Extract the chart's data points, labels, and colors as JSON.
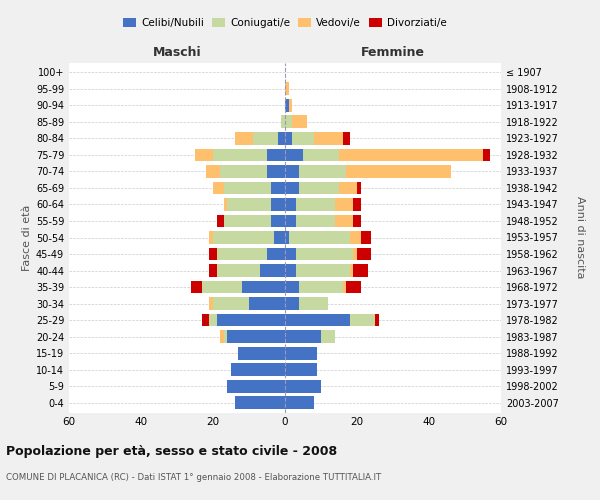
{
  "age_groups": [
    "0-4",
    "5-9",
    "10-14",
    "15-19",
    "20-24",
    "25-29",
    "30-34",
    "35-39",
    "40-44",
    "45-49",
    "50-54",
    "55-59",
    "60-64",
    "65-69",
    "70-74",
    "75-79",
    "80-84",
    "85-89",
    "90-94",
    "95-99",
    "100+"
  ],
  "birth_years": [
    "2003-2007",
    "1998-2002",
    "1993-1997",
    "1988-1992",
    "1983-1987",
    "1978-1982",
    "1973-1977",
    "1968-1972",
    "1963-1967",
    "1958-1962",
    "1953-1957",
    "1948-1952",
    "1943-1947",
    "1938-1942",
    "1933-1937",
    "1928-1932",
    "1923-1927",
    "1918-1922",
    "1913-1917",
    "1908-1912",
    "≤ 1907"
  ],
  "male": {
    "celibi": [
      14,
      16,
      15,
      13,
      16,
      19,
      10,
      12,
      7,
      5,
      3,
      4,
      4,
      4,
      5,
      5,
      2,
      0,
      0,
      0,
      0
    ],
    "coniugati": [
      0,
      0,
      0,
      0,
      1,
      2,
      10,
      11,
      12,
      14,
      17,
      13,
      12,
      13,
      13,
      15,
      7,
      1,
      0,
      0,
      0
    ],
    "vedovi": [
      0,
      0,
      0,
      0,
      1,
      0,
      1,
      0,
      0,
      0,
      1,
      0,
      1,
      3,
      4,
      5,
      5,
      0,
      0,
      0,
      0
    ],
    "divorziati": [
      0,
      0,
      0,
      0,
      0,
      2,
      0,
      3,
      2,
      2,
      0,
      2,
      0,
      0,
      0,
      0,
      0,
      0,
      0,
      0,
      0
    ]
  },
  "female": {
    "nubili": [
      8,
      10,
      9,
      9,
      10,
      18,
      4,
      4,
      3,
      3,
      1,
      3,
      3,
      4,
      4,
      5,
      2,
      0,
      1,
      0,
      0
    ],
    "coniugate": [
      0,
      0,
      0,
      0,
      4,
      7,
      8,
      12,
      15,
      16,
      17,
      11,
      11,
      11,
      13,
      10,
      6,
      2,
      0,
      0,
      0
    ],
    "vedove": [
      0,
      0,
      0,
      0,
      0,
      0,
      0,
      1,
      1,
      1,
      3,
      5,
      5,
      5,
      29,
      40,
      8,
      4,
      1,
      1,
      0
    ],
    "divorziate": [
      0,
      0,
      0,
      0,
      0,
      1,
      0,
      4,
      4,
      4,
      3,
      2,
      2,
      1,
      0,
      2,
      2,
      0,
      0,
      0,
      0
    ]
  },
  "colors": {
    "celibi": "#4472c4",
    "coniugati": "#c5d9a0",
    "vedovi": "#ffc06e",
    "divorziati": "#cc0000"
  },
  "title": "Popolazione per età, sesso e stato civile - 2008",
  "subtitle": "COMUNE DI PLACANICA (RC) - Dati ISTAT 1° gennaio 2008 - Elaborazione TUTTITALIA.IT",
  "xlabel_left": "Maschi",
  "xlabel_right": "Femmine",
  "ylabel_left": "Fasce di età",
  "ylabel_right": "Anni di nascita",
  "xlim": 60,
  "bg_color": "#f0f0f0",
  "plot_bg": "#ffffff",
  "grid_color": "#cccccc"
}
